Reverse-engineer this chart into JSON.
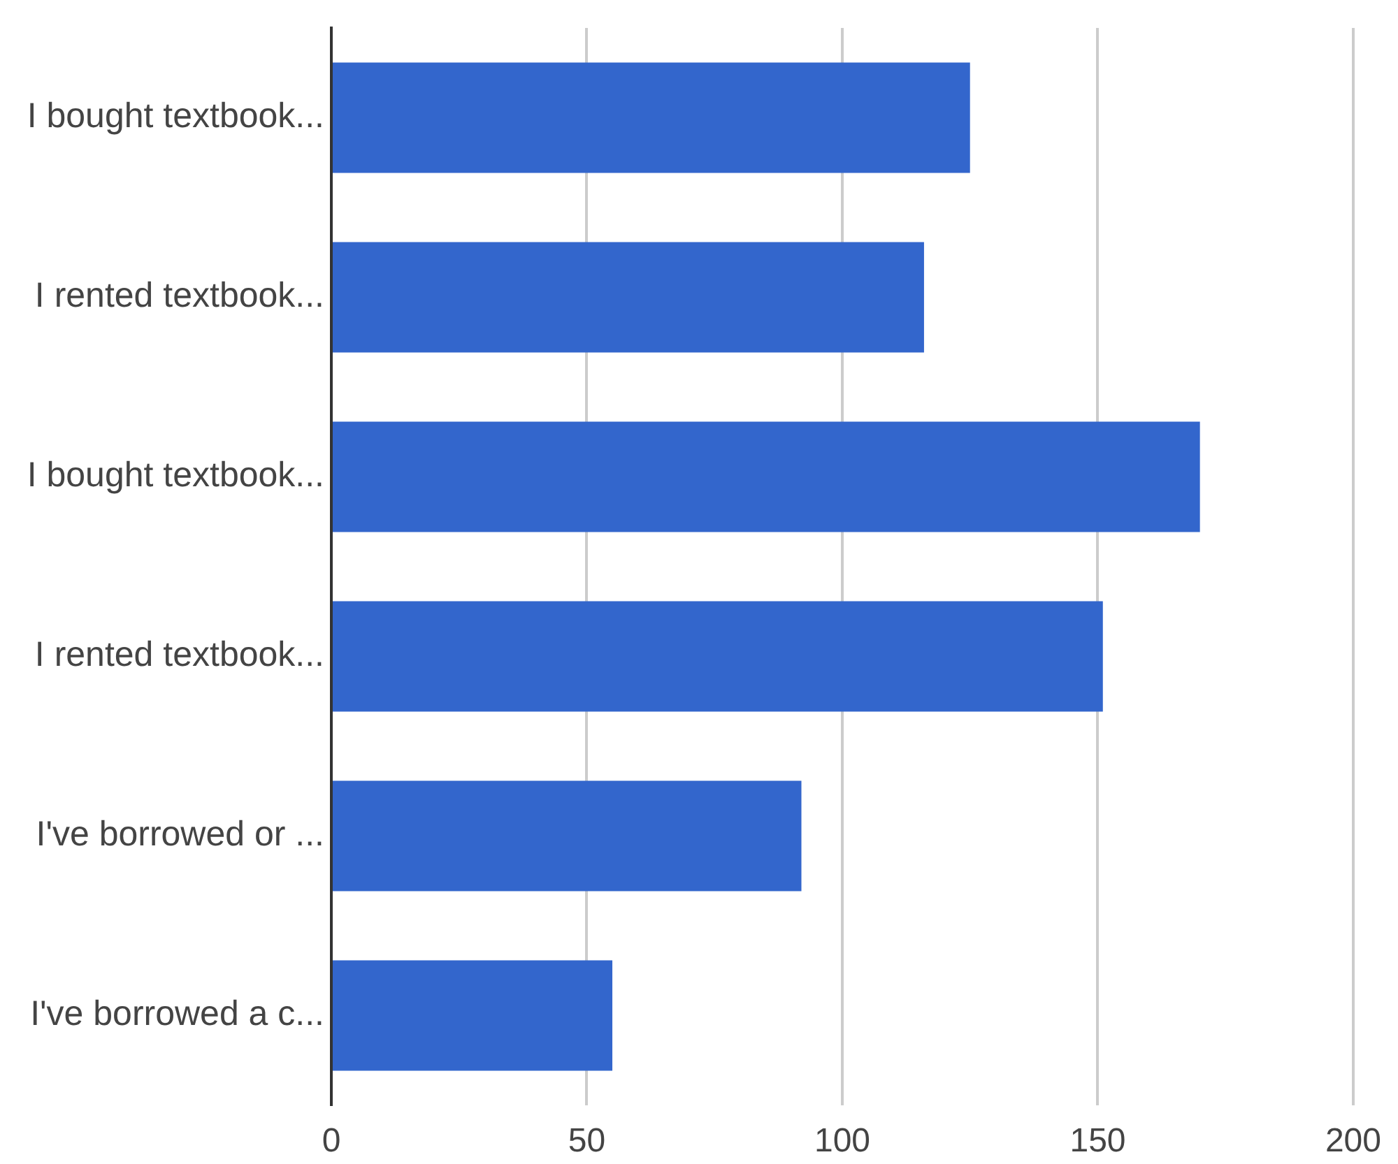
{
  "chart_data": {
    "type": "bar",
    "orientation": "horizontal",
    "categories": [
      "I bought textbook...",
      "I rented textbook...",
      "I bought textbook...",
      "I rented textbook...",
      "I've borrowed or ...",
      "I've borrowed a c..."
    ],
    "values": [
      125,
      116,
      170,
      151,
      92,
      55
    ],
    "color": "#3366cc",
    "xlim": [
      0,
      200
    ],
    "xticks": [
      0,
      50,
      100,
      150,
      200
    ],
    "grid": "x",
    "legend": false
  }
}
